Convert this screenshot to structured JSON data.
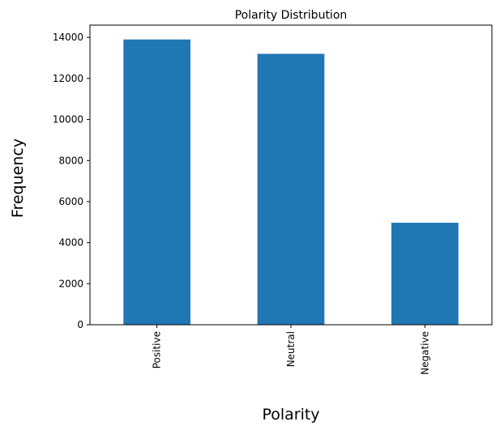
{
  "chart_data": {
    "type": "bar",
    "title": "Polarity Distribution",
    "xlabel": "Polarity",
    "ylabel": "Frequency",
    "categories": [
      "Positive",
      "Neutral",
      "Negative"
    ],
    "values": [
      13900,
      13200,
      4970
    ],
    "ylim": [
      0,
      14600
    ],
    "yticks": [
      0,
      2000,
      4000,
      6000,
      8000,
      10000,
      12000,
      14000
    ],
    "bar_color": "#1f77b4",
    "grid": false,
    "legend": "none",
    "x_tick_rotation": 90
  }
}
